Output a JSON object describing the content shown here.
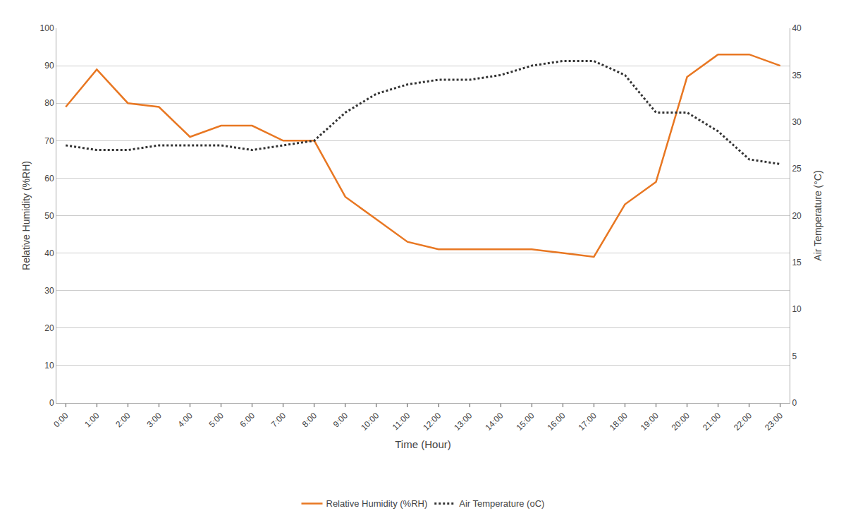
{
  "chart_data": {
    "type": "line",
    "xlabel": "Time (Hour)",
    "ylabel": "Relative Humidity (%RH)",
    "y2label": "Air Temperature (°C)",
    "x": [
      0,
      1,
      2,
      3,
      4,
      5,
      6,
      7,
      8,
      9,
      10,
      11,
      12,
      13,
      14,
      15,
      16,
      17,
      18,
      19,
      20,
      21,
      22,
      23
    ],
    "xlim": [
      -0.3,
      23.3
    ],
    "xticks": [
      {
        "value": 0,
        "label": "0:00"
      },
      {
        "value": 1,
        "label": "1:00"
      },
      {
        "value": 2,
        "label": "2:00"
      },
      {
        "value": 3,
        "label": "3:00"
      },
      {
        "value": 4,
        "label": "4:00"
      },
      {
        "value": 5,
        "label": "5:00"
      },
      {
        "value": 6,
        "label": "6:00"
      },
      {
        "value": 7,
        "label": "7:00"
      },
      {
        "value": 8,
        "label": "8:00"
      },
      {
        "value": 9,
        "label": "9:00"
      },
      {
        "value": 10,
        "label": "10:00"
      },
      {
        "value": 11,
        "label": "11:00"
      },
      {
        "value": 12,
        "label": "12:00"
      },
      {
        "value": 13,
        "label": "13:00"
      },
      {
        "value": 14,
        "label": "14:00"
      },
      {
        "value": 15,
        "label": "15:00"
      },
      {
        "value": 16,
        "label": "16:00"
      },
      {
        "value": 17,
        "label": "17:00"
      },
      {
        "value": 18,
        "label": "18:00"
      },
      {
        "value": 19,
        "label": "19:00"
      },
      {
        "value": 20,
        "label": "20:00"
      },
      {
        "value": 21,
        "label": "21:00"
      },
      {
        "value": 22,
        "label": "22:00"
      },
      {
        "value": 23,
        "label": "23:00"
      }
    ],
    "ylim": [
      0,
      100
    ],
    "yticks": [
      0,
      10,
      20,
      30,
      40,
      50,
      60,
      70,
      80,
      90,
      100
    ],
    "y2lim": [
      0,
      40
    ],
    "y2ticks": [
      0,
      5,
      10,
      15,
      20,
      25,
      30,
      35,
      40
    ],
    "grid": true,
    "legend": "bottom",
    "series": [
      {
        "name": "Relative Humidity (%RH)",
        "color": "#E87722",
        "line_style": "solid",
        "values": [
          79,
          89,
          80,
          79,
          71,
          74,
          74,
          70,
          70,
          55,
          49,
          43,
          41,
          41,
          41,
          41,
          40,
          39,
          53,
          59,
          87,
          93,
          93,
          90
        ]
      },
      {
        "name": "Air Temperature (oC)",
        "color": "#333333",
        "line_style": "dotted",
        "axis": "y2",
        "values": [
          27.5,
          27.0,
          27.0,
          27.5,
          27.5,
          27.5,
          27.0,
          27.5,
          28.0,
          31.0,
          33.0,
          34.0,
          34.5,
          34.5,
          35.0,
          36.0,
          36.5,
          36.5,
          35.0,
          31.0,
          31.0,
          29.0,
          26.0,
          25.5
        ]
      }
    ]
  }
}
